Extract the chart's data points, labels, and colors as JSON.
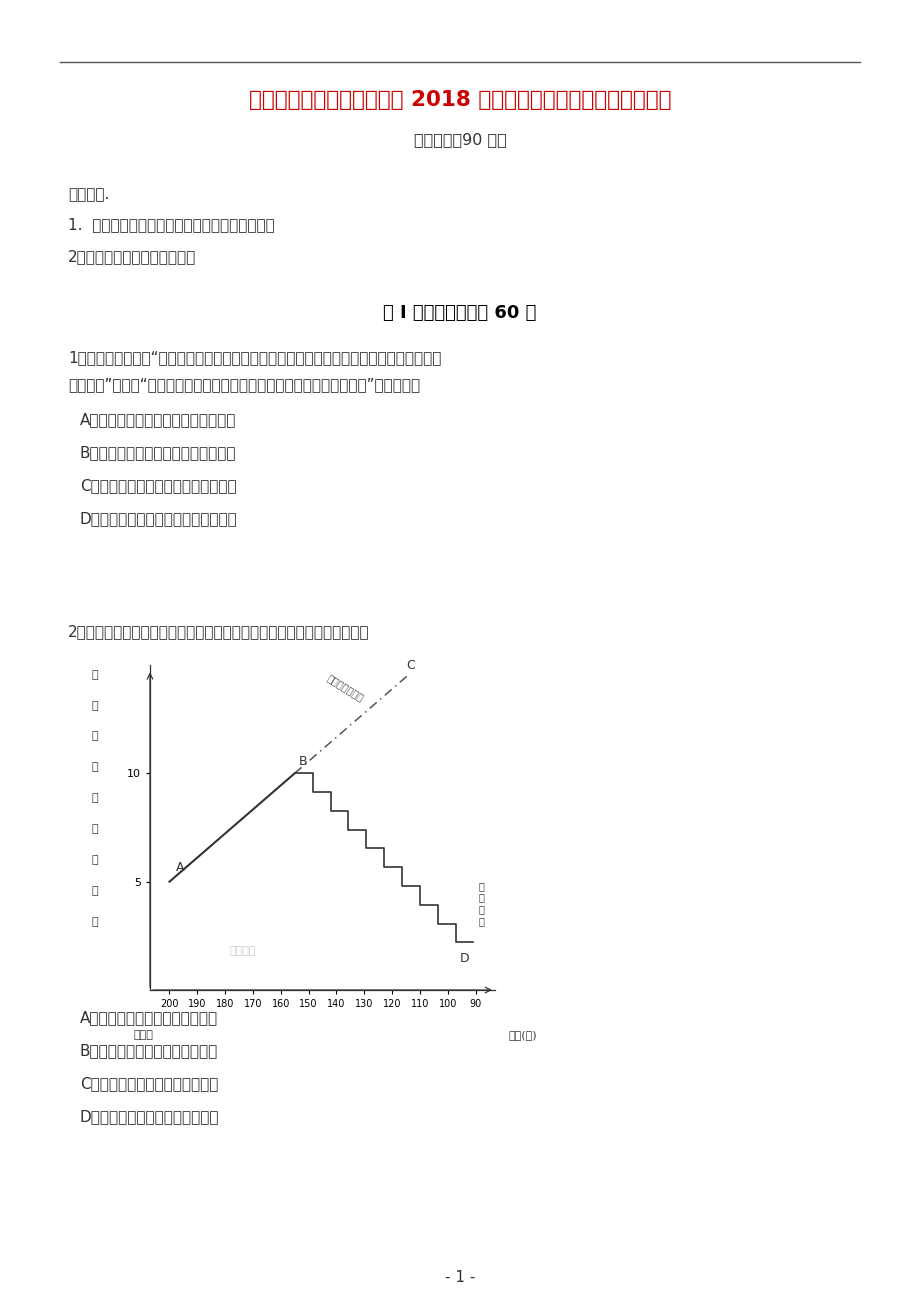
{
  "title": "云南省昆明市黄冈实验学校 2018 届高三历史上学期第四次月考试题",
  "subtitle": "考试时间：90 分钟",
  "notice_title": "注意事项.",
  "notice_items": [
    "1.  答题前填写好自己的姓名、班级、考号等信息",
    "2．请将答案正确填写在答卡上"
  ],
  "section_title": "第 I 卷（选择题）共 60 分",
  "q1_text_line1": "1、据《礼记》载：“天子之豆（豆：古代盛食器具）二十有六，诸侯十有二，上大夫八，下",
  "q1_text_line2": "大夫六。”而平民“乡饮酒之礼，六十者三豆，七十者四豆，八十者五豆。”这说明周代",
  "q1_options": [
    "A．注重等级差别和尊卑长幼伦理秩序",
    "B．贫富分化严重使国内阶级矛盾尖锐",
    "C．等级森严，贵族享有世卿世禄特权",
    "D．因类而异地形成了严格的宗法秩序"
  ],
  "q2_text": "2、如下图中描述了秦汉时期贵族化趋向的演变。对此演变的正确理解应是",
  "q2_options": [
    "A．贵族化趋向必将引起分裂割据",
    "B．贵族化趋向冲击皇位有序传承",
    "C．豪富家族促进贵族化趋向发展",
    "D．削藩弱国促使贵族化趋向弱化"
  ],
  "page_num": "- 1 -",
  "chart_ylabel_chars": [
    "贵",
    "族",
    "化",
    "傍",
    "向",
    "（",
    "万",
    "户",
    "）"
  ],
  "chart_xlabel_left": "公元前",
  "chart_xlabel_right": "时间(年)",
  "chart_xticks": [
    200,
    190,
    180,
    170,
    160,
    150,
    140,
    130,
    120,
    110,
    100,
    90
  ],
  "chart_ytick_5": 5,
  "chart_ytick_10": 10,
  "dashed_label": "不控制发展趋势",
  "control_label": "控\n制\n结\n果",
  "watermark": "时清教育",
  "title_color": "#cc0000",
  "body_color": "#333333",
  "bg_color": "#ffffff"
}
